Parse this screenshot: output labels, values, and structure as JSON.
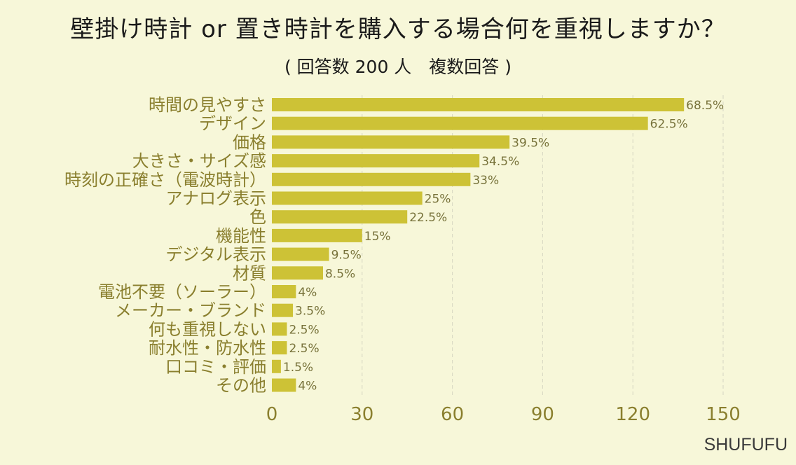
{
  "title": "壁掛け時計 or 置き時計を購入する場合何を重視しますか？",
  "subtitle": "( 回答数 200 人　複数回答 )",
  "brand": "SHUFUFU",
  "colors": {
    "bar": "#cdc236",
    "grid": "#d6d6c2",
    "background": "#f7f7d9",
    "label": "#8a7f2e"
  },
  "chart_data": {
    "type": "bar",
    "orientation": "horizontal",
    "title": "壁掛け時計 or 置き時計を購入する場合何を重視しますか？",
    "subtitle": "( 回答数 200 人　複数回答 )",
    "categories": [
      "時間の見やすさ",
      "デザイン",
      "価格",
      "大きさ・サイズ感",
      "時刻の正確さ（電波時計）",
      "アナログ表示",
      "色",
      "機能性",
      "デジタル表示",
      "材質",
      "電池不要（ソーラー）",
      "メーカー・ブランド",
      "何も重視しない",
      "耐水性・防水性",
      "口コミ・評価",
      "その他"
    ],
    "values": [
      137,
      125,
      79,
      69,
      66,
      50,
      45,
      30,
      19,
      17,
      8,
      7,
      5,
      5,
      3,
      8
    ],
    "value_labels": [
      "68.5%",
      "62.5%",
      "39.5%",
      "34.5%",
      "33%",
      "25%",
      "22.5%",
      "15%",
      "9.5%",
      "8.5%",
      "4%",
      "3.5%",
      "2.5%",
      "2.5%",
      "1.5%",
      "4%"
    ],
    "xlim": [
      0,
      150
    ],
    "xticks": [
      "0",
      "30",
      "60",
      "90",
      "120",
      "150"
    ],
    "xlabel": "",
    "ylabel": "",
    "grid": "vertical dashed"
  }
}
